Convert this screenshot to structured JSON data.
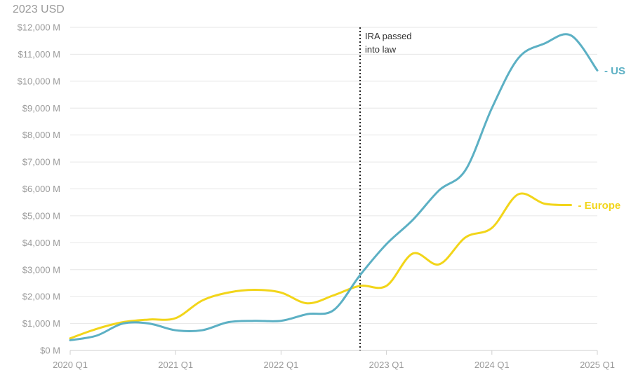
{
  "chart_data": {
    "type": "line",
    "unit_label": "2023 USD",
    "x": [
      "2020 Q1",
      "2020 Q2",
      "2020 Q3",
      "2020 Q4",
      "2021 Q1",
      "2021 Q2",
      "2021 Q3",
      "2021 Q4",
      "2022 Q1",
      "2022 Q2",
      "2022 Q3",
      "2022 Q4",
      "2023 Q1",
      "2023 Q2",
      "2023 Q3",
      "2023 Q4",
      "2024 Q1",
      "2024 Q2",
      "2024 Q3",
      "2024 Q4",
      "2025 Q1"
    ],
    "x_ticks": [
      "2020 Q1",
      "2021 Q1",
      "2022 Q1",
      "2023 Q1",
      "2024 Q1",
      "2025 Q1"
    ],
    "y_ticks": [
      0,
      1000,
      2000,
      3000,
      4000,
      5000,
      6000,
      7000,
      8000,
      9000,
      10000,
      11000,
      12000
    ],
    "y_tick_labels": [
      "$0 M",
      "$1,000 M",
      "$2,000 M",
      "$3,000 M",
      "$4,000 M",
      "$5,000 M",
      "$6,000 M",
      "$7,000 M",
      "$8,000 M",
      "$9,000 M",
      "$10,000 M",
      "$11,000 M",
      "$12,000 M"
    ],
    "ylim": [
      0,
      12000
    ],
    "grid": true,
    "series": [
      {
        "name": "US",
        "label": "- US",
        "color": "#5cb0c4",
        "values": [
          380,
          550,
          1000,
          1000,
          750,
          750,
          1050,
          1100,
          1100,
          1350,
          1500,
          2800,
          3950,
          4850,
          5950,
          6700,
          9000,
          10850,
          11400,
          11700,
          10400
        ]
      },
      {
        "name": "Europe",
        "label": "- Europe",
        "color": "#f2d51a",
        "values": [
          450,
          800,
          1050,
          1150,
          1200,
          1850,
          2150,
          2250,
          2150,
          1750,
          2050,
          2400,
          2400,
          3600,
          3200,
          4200,
          4550,
          5800,
          5450,
          5400,
          null
        ]
      }
    ],
    "annotations": [
      {
        "x": "2022 Q4",
        "lines": [
          "IRA passed",
          "into law"
        ],
        "style": "dotted-vertical"
      }
    ]
  }
}
